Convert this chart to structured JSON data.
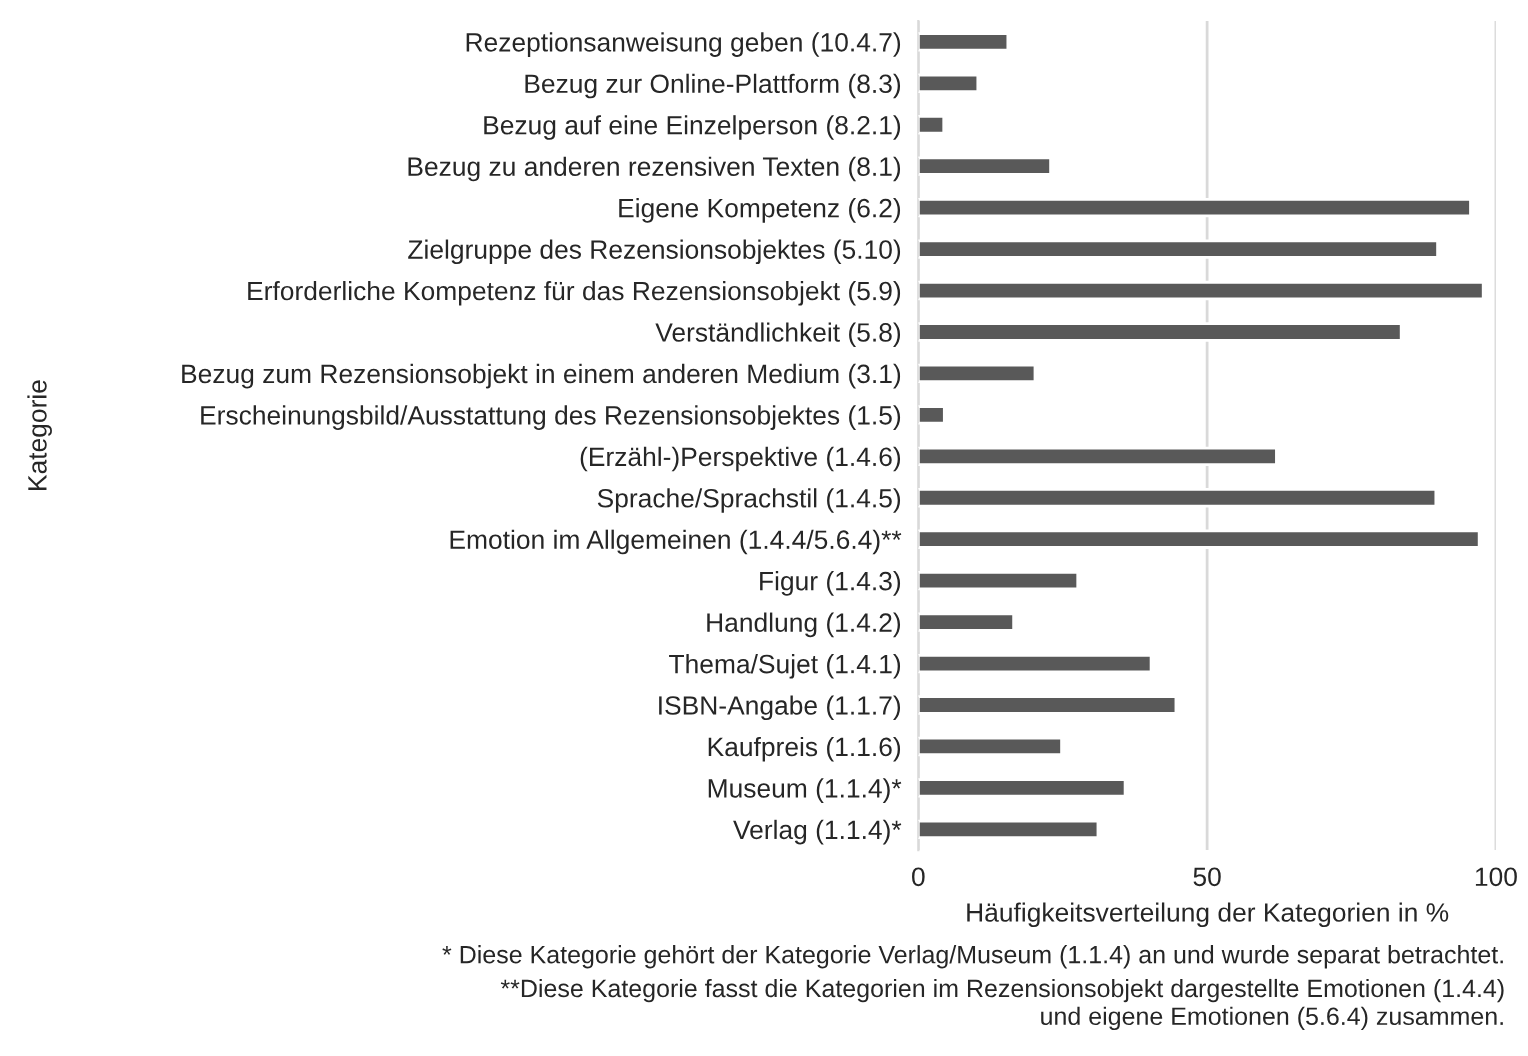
{
  "chart_data": {
    "type": "bar",
    "orientation": "horizontal",
    "xlabel": "Häufigkeitsverteilung der Kategorien in %",
    "ylabel": "Kategorie",
    "categories": [
      "Rezeptionsanweisung geben (10.4.7)",
      "Bezug zur Online-Plattform (8.3)",
      "Bezug auf eine Einzelperson (8.2.1)",
      "Bezug zu anderen rezensiven Texten (8.1)",
      "Eigene Kompetenz (6.2)",
      "Zielgruppe des Rezensionsobjektes (5.10)",
      "Erforderliche Kompetenz für das Rezensionsobjekt (5.9)",
      "Verständlichkeit (5.8)",
      "Bezug zum Rezensionsobjekt in einem anderen Medium (3.1)",
      "Erscheinungsbild/Ausstattung des Rezensionsobjektes (1.5)",
      "(Erzähl-)Perspektive (1.4.6)",
      "Sprache/Sprachstil (1.4.5)",
      "Emotion im Allgemeinen (1.4.4/5.6.4)**",
      "Figur (1.4.3)",
      "Handlung (1.4.2)",
      "Thema/Sujet (1.4.1)",
      "ISBN-Angabe (1.1.7)",
      "Kaufpreis (1.1.6)",
      "Museum (1.1.4)*",
      "Verlag (1.1.4)*"
    ],
    "values": [
      15.5,
      10.3,
      4.4,
      22.9,
      95.6,
      89.9,
      97.8,
      83.6,
      20.2,
      4.5,
      62.0,
      89.6,
      97.1,
      27.6,
      16.5,
      40.3,
      44.6,
      24.8,
      35.8,
      31.1
    ],
    "color": "#595959",
    "xlim": [
      0,
      100
    ],
    "xticks": [
      0,
      50,
      100
    ],
    "grid": "x",
    "annotations": [
      "* Diese Kategorie gehört der Kategorie Verlag/Museum (1.1.4) an und wurde separat betrachtet.",
      "**Diese Kategorie fasst die Kategorien im Rezensionsobjekt dargestellte Emotionen (1.4.4)\nund eigene Emotionen (5.6.4) zusammen."
    ]
  }
}
